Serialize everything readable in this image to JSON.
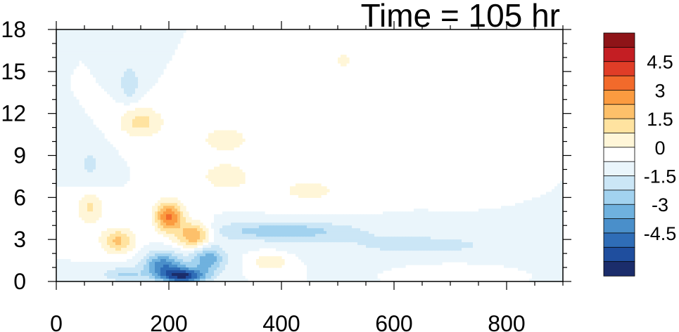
{
  "chart_data": {
    "type": "heatmap",
    "title": "Time = 105 hr",
    "xlabel": "",
    "ylabel": "",
    "xlim": [
      0,
      900
    ],
    "ylim": [
      0,
      18
    ],
    "x_ticks": [
      0,
      200,
      400,
      600,
      800
    ],
    "y_ticks": [
      0,
      3,
      6,
      9,
      12,
      15,
      18
    ],
    "x_tick_labels": [
      "0",
      "200",
      "400",
      "600",
      "800"
    ],
    "y_tick_labels": [
      "0",
      "3",
      "6",
      "9",
      "12",
      "15",
      "18"
    ],
    "colorbar": {
      "levels": [
        -5.25,
        -4.5,
        -3.75,
        -3,
        -2.25,
        -1.5,
        -0.75,
        0,
        0.75,
        1.5,
        2.25,
        3,
        3.75,
        4.5,
        5.25
      ],
      "labeled_values": [
        "4.5",
        "3",
        "1.5",
        "0",
        "-1.5",
        "-3",
        "-4.5"
      ],
      "colors": [
        "#1b2d6b",
        "#1f4e9e",
        "#2f6db7",
        "#4a8fca",
        "#6fb1de",
        "#a2d2ef",
        "#cbe6f6",
        "#eaf5fb",
        "#ffffff",
        "#fff6d8",
        "#ffe3a0",
        "#fdc06a",
        "#fb9b40",
        "#f26a2b",
        "#e03d27",
        "#c41e23",
        "#8e1418"
      ]
    },
    "features": [
      {
        "sign": "negative",
        "x": 220,
        "y": 0.4,
        "peak": -5.0
      },
      {
        "sign": "positive",
        "x": 200,
        "y": 4.5,
        "peak": 4.0
      },
      {
        "sign": "positive",
        "x": 110,
        "y": 2.8,
        "peak": 2.5
      },
      {
        "sign": "negative",
        "x": 400,
        "y": 3.6,
        "peak": -2.0
      },
      {
        "sign": "positive",
        "x": 150,
        "y": 11.5,
        "peak": 1.8
      },
      {
        "sign": "positive",
        "x": 380,
        "y": 1.5,
        "peak": 1.5
      },
      {
        "sign": "negative",
        "x": 140,
        "y": 14.2,
        "peak": -1.5
      }
    ]
  }
}
